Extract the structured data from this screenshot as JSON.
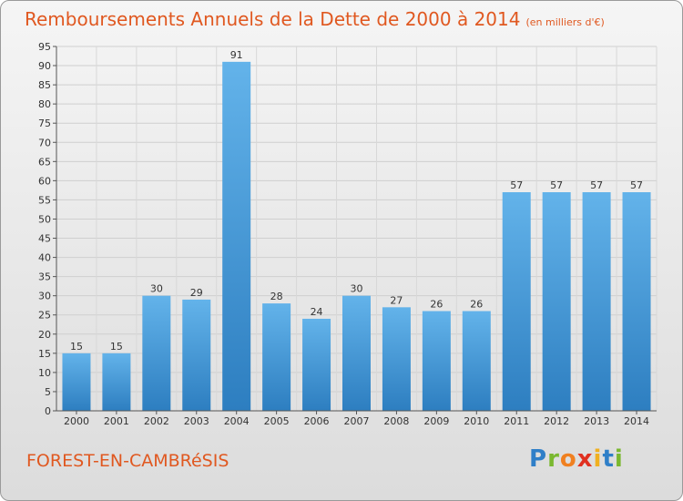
{
  "header": {
    "title": "Remboursements Annuels de la Dette de 2000 à 2014",
    "unit": "(en milliers d'€)"
  },
  "footer": {
    "commune": "FOREST-EN-CAMBRéSIS",
    "brand": [
      "P",
      "r",
      "o",
      "x",
      "i",
      "t",
      "i"
    ],
    "brand_colors": [
      "#2f7fc8",
      "#7ab830",
      "#f08020",
      "#e03020",
      "#f0b020",
      "#2f7fc8",
      "#7ab830"
    ]
  },
  "colors": {
    "bar_top": "#63b3ea",
    "bar_bottom": "#2d7ec0",
    "title": "#e05820"
  },
  "chart_data": {
    "type": "bar",
    "title": "Remboursements Annuels de la Dette de 2000 à 2014",
    "categories": [
      "2000",
      "2001",
      "2002",
      "2003",
      "2004",
      "2005",
      "2006",
      "2007",
      "2008",
      "2009",
      "2010",
      "2011",
      "2012",
      "2013",
      "2014"
    ],
    "values": [
      15,
      15,
      30,
      29,
      91,
      28,
      24,
      30,
      27,
      26,
      26,
      57,
      57,
      57,
      57
    ],
    "ylim": [
      0,
      95
    ],
    "yticks": [
      0,
      5,
      10,
      15,
      20,
      25,
      30,
      35,
      40,
      45,
      50,
      55,
      60,
      65,
      70,
      75,
      80,
      85,
      90,
      95
    ],
    "grid": true
  }
}
